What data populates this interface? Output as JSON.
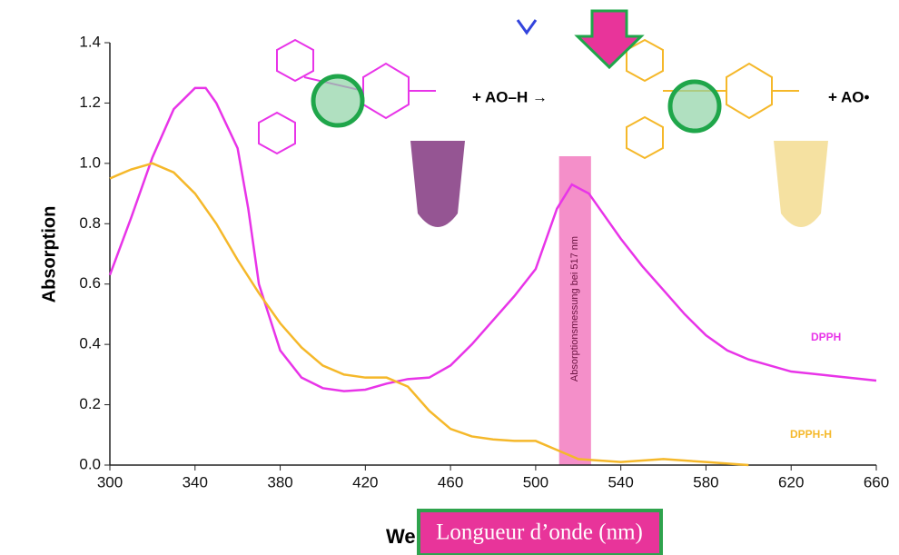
{
  "chart_data": {
    "type": "line",
    "y_label": "Absorption",
    "x_label": "Longueur d’onde (nm)",
    "x_label_hidden": "We",
    "xlim": [
      300,
      660
    ],
    "xticks": [
      300,
      340,
      380,
      420,
      460,
      500,
      540,
      580,
      620,
      660
    ],
    "ylim": [
      0,
      1.4
    ],
    "yticks": [
      {
        "value": 0,
        "label": "0.0"
      },
      0.2,
      0.4,
      0.6,
      0.8,
      {
        "value": 1,
        "label": "1.0"
      },
      1.2,
      1.4
    ],
    "band": {
      "x": [
        511,
        526
      ],
      "label": "Absorptionsmessung bei 517 nm",
      "color": "#f27bc0"
    },
    "reaction": {
      "left": "+ AO–H →",
      "right": "+ AO•"
    },
    "series": [
      {
        "name": "DPPH",
        "color": "#e834e8",
        "x": [
          300,
          310,
          320,
          330,
          340,
          345,
          350,
          360,
          365,
          370,
          380,
          390,
          400,
          410,
          420,
          430,
          440,
          450,
          460,
          470,
          480,
          490,
          500,
          505,
          510,
          517,
          525,
          530,
          540,
          550,
          560,
          570,
          580,
          590,
          600,
          620,
          640,
          660
        ],
        "values": [
          0.63,
          0.82,
          1.02,
          1.18,
          1.25,
          1.25,
          1.2,
          1.05,
          0.85,
          0.6,
          0.38,
          0.29,
          0.255,
          0.245,
          0.25,
          0.27,
          0.285,
          0.29,
          0.33,
          0.4,
          0.48,
          0.56,
          0.65,
          0.75,
          0.85,
          0.93,
          0.9,
          0.85,
          0.75,
          0.66,
          0.58,
          0.5,
          0.43,
          0.38,
          0.35,
          0.31,
          0.295,
          0.28
        ]
      },
      {
        "name": "DPPH-H",
        "color": "#f5b82a",
        "x": [
          300,
          310,
          320,
          330,
          340,
          350,
          360,
          370,
          380,
          390,
          400,
          410,
          420,
          430,
          440,
          450,
          460,
          470,
          480,
          490,
          500,
          510,
          520,
          540,
          560,
          580,
          600
        ],
        "values": [
          0.95,
          0.98,
          1.0,
          0.97,
          0.9,
          0.8,
          0.68,
          0.57,
          0.47,
          0.39,
          0.33,
          0.3,
          0.29,
          0.29,
          0.26,
          0.18,
          0.12,
          0.095,
          0.085,
          0.08,
          0.08,
          0.05,
          0.02,
          0.01,
          0.02,
          0.01,
          0
        ]
      }
    ]
  }
}
